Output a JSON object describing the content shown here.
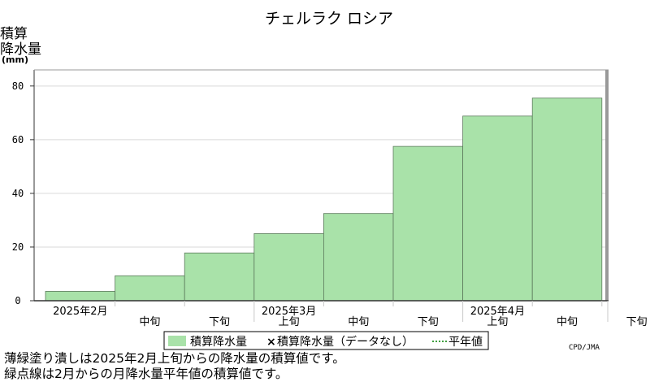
{
  "chart_data": {
    "type": "bar",
    "title": "チェルラク ロシア",
    "ylabel_lines": [
      "積算",
      "降水量"
    ],
    "yunit": "(mm)",
    "ylim": [
      0,
      86
    ],
    "yticks": [
      0,
      20,
      40,
      60,
      80
    ],
    "grid": true,
    "categories": [
      "2月上旬",
      "2月中旬",
      "2月下旬",
      "3月上旬",
      "3月中旬",
      "3月下旬",
      "4月上旬",
      "4月中旬",
      "4月下旬"
    ],
    "x_tick_labels": [
      "",
      "中旬",
      "下旬",
      "上旬",
      "中旬",
      "下旬",
      "上旬",
      "中旬",
      "下旬"
    ],
    "month_labels": [
      {
        "label": "2025年2月",
        "start": 0
      },
      {
        "label": "2025年3月",
        "start": 3
      },
      {
        "label": "2025年4月",
        "start": 6
      }
    ],
    "series": [
      {
        "name": "積算降水量",
        "values": [
          3.5,
          9.3,
          17.8,
          25.0,
          32.5,
          57.5,
          68.8,
          75.5,
          null
        ],
        "color": "#a9e2a9"
      }
    ],
    "legend": {
      "position": "bottom",
      "items": [
        {
          "label": "積算降水量",
          "kind": "box",
          "color": "#a9e2a9"
        },
        {
          "label": "積算降水量（データなし）",
          "kind": "x"
        },
        {
          "label": "平年値",
          "kind": "dotted"
        }
      ]
    },
    "credit": "CPD/JMA"
  },
  "notes": [
    "薄緑塗り潰しは2025年2月上旬からの降水量の積算値です。",
    "緑点線は2月からの月降水量平年値の積算値です。"
  ]
}
